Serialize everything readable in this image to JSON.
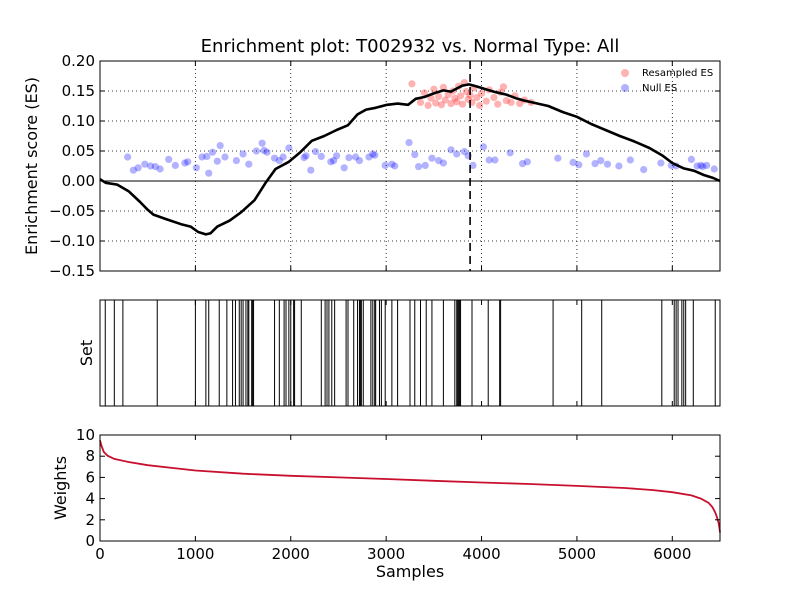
{
  "chart_data": [
    {
      "type": "scatter",
      "title": "Enrichment plot: T002932 vs. Normal Type: All",
      "ylabel": "Enrichment score (ES)",
      "xlim": [
        0,
        6500
      ],
      "ylim": [
        -0.15,
        0.2
      ],
      "x_ticks": [
        1000,
        2000,
        3000,
        4000,
        5000,
        6000
      ],
      "y_ticks": [
        "0.20",
        "0.15",
        "0.10",
        "0.05",
        "0.00",
        "−0.05",
        "−0.10",
        "−0.15"
      ],
      "y_tick_values": [
        0.2,
        0.15,
        0.1,
        0.05,
        0.0,
        -0.05,
        -0.1,
        -0.15
      ],
      "grid": true,
      "legend_position": "top-right",
      "es_curve": {
        "color": "#000000",
        "points": [
          [
            0,
            0.003
          ],
          [
            60,
            -0.003
          ],
          [
            180,
            -0.006
          ],
          [
            300,
            -0.017
          ],
          [
            420,
            -0.035
          ],
          [
            500,
            -0.048
          ],
          [
            560,
            -0.056
          ],
          [
            700,
            -0.064
          ],
          [
            850,
            -0.072
          ],
          [
            950,
            -0.076
          ],
          [
            1030,
            -0.085
          ],
          [
            1110,
            -0.089
          ],
          [
            1160,
            -0.087
          ],
          [
            1230,
            -0.076
          ],
          [
            1360,
            -0.066
          ],
          [
            1480,
            -0.052
          ],
          [
            1620,
            -0.032
          ],
          [
            1740,
            -0.002
          ],
          [
            1840,
            0.02
          ],
          [
            1980,
            0.032
          ],
          [
            2100,
            0.048
          ],
          [
            2220,
            0.067
          ],
          [
            2350,
            0.075
          ],
          [
            2480,
            0.085
          ],
          [
            2600,
            0.093
          ],
          [
            2700,
            0.111
          ],
          [
            2790,
            0.119
          ],
          [
            2890,
            0.122
          ],
          [
            3010,
            0.127
          ],
          [
            3120,
            0.129
          ],
          [
            3230,
            0.127
          ],
          [
            3310,
            0.137
          ],
          [
            3400,
            0.14
          ],
          [
            3500,
            0.146
          ],
          [
            3600,
            0.151
          ],
          [
            3680,
            0.149
          ],
          [
            3750,
            0.155
          ],
          [
            3800,
            0.159
          ],
          [
            3870,
            0.161
          ],
          [
            3960,
            0.157
          ],
          [
            4060,
            0.152
          ],
          [
            4150,
            0.148
          ],
          [
            4260,
            0.144
          ],
          [
            4360,
            0.138
          ],
          [
            4450,
            0.134
          ],
          [
            4560,
            0.13
          ],
          [
            4700,
            0.125
          ],
          [
            4850,
            0.115
          ],
          [
            5000,
            0.107
          ],
          [
            5150,
            0.095
          ],
          [
            5300,
            0.085
          ],
          [
            5450,
            0.075
          ],
          [
            5600,
            0.066
          ],
          [
            5760,
            0.055
          ],
          [
            5900,
            0.042
          ],
          [
            6000,
            0.03
          ],
          [
            6120,
            0.021
          ],
          [
            6230,
            0.017
          ],
          [
            6330,
            0.01
          ],
          [
            6430,
            0.005
          ],
          [
            6500,
            0.0
          ]
        ]
      },
      "peak_marker_x": 3880,
      "series": [
        {
          "name": "Resampled ES",
          "color": "#ff0000",
          "points": [
            [
              3270,
              0.162
            ],
            [
              3360,
              0.131
            ],
            [
              3400,
              0.147
            ],
            [
              3440,
              0.126
            ],
            [
              3470,
              0.138
            ],
            [
              3500,
              0.153
            ],
            [
              3520,
              0.13
            ],
            [
              3550,
              0.141
            ],
            [
              3580,
              0.127
            ],
            [
              3600,
              0.156
            ],
            [
              3620,
              0.135
            ],
            [
              3650,
              0.144
            ],
            [
              3680,
              0.129
            ],
            [
              3700,
              0.15
            ],
            [
              3720,
              0.138
            ],
            [
              3740,
              0.132
            ],
            [
              3760,
              0.158
            ],
            [
              3780,
              0.142
            ],
            [
              3800,
              0.128
            ],
            [
              3820,
              0.164
            ],
            [
              3840,
              0.149
            ],
            [
              3860,
              0.136
            ],
            [
              3880,
              0.143
            ],
            [
              3900,
              0.131
            ],
            [
              3920,
              0.155
            ],
            [
              3950,
              0.139
            ],
            [
              3980,
              0.126
            ],
            [
              4000,
              0.146
            ],
            [
              4050,
              0.133
            ],
            [
              4080,
              0.152
            ],
            [
              4130,
              0.139
            ],
            [
              4170,
              0.128
            ],
            [
              4200,
              0.148
            ],
            [
              4230,
              0.157
            ],
            [
              4260,
              0.134
            ],
            [
              4310,
              0.131
            ],
            [
              4350,
              0.142
            ],
            [
              4400,
              0.129
            ],
            [
              4450,
              0.135
            ],
            [
              4520,
              0.131
            ]
          ]
        },
        {
          "name": "Null ES",
          "color": "#0000ff",
          "points": [
            [
              290,
              0.04
            ],
            [
              350,
              0.018
            ],
            [
              400,
              0.022
            ],
            [
              470,
              0.028
            ],
            [
              530,
              0.025
            ],
            [
              580,
              0.024
            ],
            [
              630,
              0.02
            ],
            [
              720,
              0.036
            ],
            [
              790,
              0.026
            ],
            [
              890,
              0.03
            ],
            [
              920,
              0.032
            ],
            [
              1010,
              0.022
            ],
            [
              1070,
              0.04
            ],
            [
              1120,
              0.041
            ],
            [
              1140,
              0.013
            ],
            [
              1180,
              0.048
            ],
            [
              1230,
              0.033
            ],
            [
              1260,
              0.059
            ],
            [
              1310,
              0.04
            ],
            [
              1430,
              0.034
            ],
            [
              1500,
              0.045
            ],
            [
              1560,
              0.028
            ],
            [
              1640,
              0.05
            ],
            [
              1700,
              0.063
            ],
            [
              1720,
              0.051
            ],
            [
              1750,
              0.048
            ],
            [
              1830,
              0.038
            ],
            [
              1880,
              0.034
            ],
            [
              1920,
              0.04
            ],
            [
              1980,
              0.055
            ],
            [
              2140,
              0.039
            ],
            [
              2160,
              0.042
            ],
            [
              2210,
              0.018
            ],
            [
              2260,
              0.049
            ],
            [
              2320,
              0.041
            ],
            [
              2420,
              0.032
            ],
            [
              2450,
              0.034
            ],
            [
              2480,
              0.042
            ],
            [
              2560,
              0.022
            ],
            [
              2610,
              0.039
            ],
            [
              2680,
              0.04
            ],
            [
              2720,
              0.034
            ],
            [
              2820,
              0.04
            ],
            [
              2860,
              0.045
            ],
            [
              2880,
              0.043
            ],
            [
              2990,
              0.026
            ],
            [
              3060,
              0.028
            ],
            [
              3090,
              0.025
            ],
            [
              3240,
              0.064
            ],
            [
              3300,
              0.044
            ],
            [
              3340,
              0.024
            ],
            [
              3410,
              0.026
            ],
            [
              3480,
              0.038
            ],
            [
              3550,
              0.034
            ],
            [
              3600,
              0.03
            ],
            [
              3680,
              0.052
            ],
            [
              3740,
              0.045
            ],
            [
              3820,
              0.049
            ],
            [
              3860,
              0.042
            ],
            [
              3910,
              0.026
            ],
            [
              4020,
              0.057
            ],
            [
              4080,
              0.035
            ],
            [
              4140,
              0.035
            ],
            [
              4300,
              0.047
            ],
            [
              4430,
              0.029
            ],
            [
              4480,
              0.032
            ],
            [
              4800,
              0.038
            ],
            [
              4960,
              0.031
            ],
            [
              5020,
              0.027
            ],
            [
              5100,
              0.045
            ],
            [
              5190,
              0.029
            ],
            [
              5250,
              0.034
            ],
            [
              5320,
              0.028
            ],
            [
              5440,
              0.025
            ],
            [
              5560,
              0.035
            ],
            [
              5700,
              0.019
            ],
            [
              5880,
              0.03
            ],
            [
              5990,
              0.026
            ],
            [
              6040,
              0.025
            ],
            [
              6200,
              0.036
            ],
            [
              6260,
              0.025
            ],
            [
              6300,
              0.026
            ],
            [
              6320,
              0.024
            ],
            [
              6360,
              0.026
            ],
            [
              6440,
              0.02
            ]
          ]
        }
      ]
    },
    {
      "type": "rug",
      "ylabel": "Set",
      "xlim": [
        0,
        6500
      ],
      "hits": [
        55,
        150,
        240,
        600,
        1000,
        1110,
        1140,
        1250,
        1330,
        1390,
        1420,
        1460,
        1480,
        1500,
        1530,
        1550,
        1560,
        1590,
        1600,
        1610,
        1830,
        1880,
        1930,
        1950,
        1980,
        2000,
        2030,
        2040,
        2110,
        2320,
        2360,
        2380,
        2400,
        2430,
        2460,
        2580,
        2600,
        2660,
        2700,
        2720,
        2730,
        2740,
        2760,
        2840,
        2860,
        2880,
        2890,
        2930,
        2950,
        2990,
        3060,
        3120,
        3250,
        3300,
        3360,
        3420,
        3480,
        3600,
        3720,
        3740,
        3750,
        3760,
        3770,
        3780,
        3900,
        4070,
        4190,
        4200,
        4750,
        5050,
        5260,
        5890,
        6020,
        6040,
        6060,
        6100,
        6120,
        6140,
        6220,
        6450
      ]
    },
    {
      "type": "line",
      "ylabel": "Weights",
      "xlabel": "Samples",
      "xlim": [
        0,
        6500
      ],
      "ylim": [
        0,
        10
      ],
      "x_ticks": [
        0,
        1000,
        2000,
        3000,
        4000,
        5000,
        6000
      ],
      "y_ticks": [
        0,
        2,
        4,
        6,
        8,
        10
      ],
      "series": [
        {
          "color": "#c8102e",
          "points": [
            [
              0,
              9.5
            ],
            [
              15,
              9.0
            ],
            [
              40,
              8.4
            ],
            [
              80,
              8.05
            ],
            [
              150,
              7.75
            ],
            [
              300,
              7.45
            ],
            [
              500,
              7.15
            ],
            [
              800,
              6.85
            ],
            [
              1000,
              6.65
            ],
            [
              1500,
              6.35
            ],
            [
              2000,
              6.15
            ],
            [
              2500,
              6.0
            ],
            [
              3000,
              5.85
            ],
            [
              3500,
              5.68
            ],
            [
              4000,
              5.52
            ],
            [
              4500,
              5.38
            ],
            [
              5000,
              5.2
            ],
            [
              5500,
              5.0
            ],
            [
              5800,
              4.8
            ],
            [
              6000,
              4.6
            ],
            [
              6200,
              4.3
            ],
            [
              6300,
              4.0
            ],
            [
              6380,
              3.6
            ],
            [
              6420,
              3.2
            ],
            [
              6450,
              2.7
            ],
            [
              6470,
              2.2
            ],
            [
              6485,
              1.7
            ],
            [
              6495,
              1.2
            ],
            [
              6500,
              0.8
            ]
          ]
        }
      ]
    }
  ]
}
